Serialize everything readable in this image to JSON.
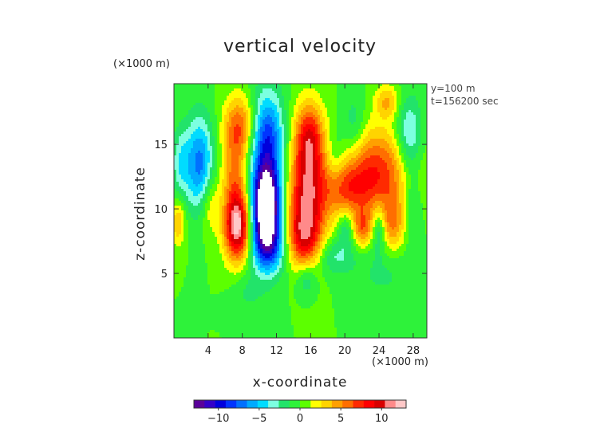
{
  "chart_data": {
    "type": "heatmap",
    "title": "vertical velocity",
    "xlabel": "x-coordinate",
    "ylabel": "z-coordinate",
    "x_unit": "(×1000 m)",
    "y_unit": "(×1000 m)",
    "info": [
      "y=100 m",
      "t=156200 sec"
    ],
    "xlim": [
      0,
      29.6
    ],
    "ylim": [
      0,
      19.7
    ],
    "xticks": [
      4,
      8,
      12,
      16,
      20,
      24,
      28
    ],
    "yticks": [
      5,
      10,
      15
    ],
    "colorbar": {
      "range": [
        -13,
        13
      ],
      "ticks": [
        -10,
        -5,
        0,
        5,
        10
      ],
      "colors": [
        "#5a009a",
        "#3400c8",
        "#0000dc",
        "#0034ff",
        "#0070ff",
        "#00aaff",
        "#00dcff",
        "#7cffe0",
        "#22e36a",
        "#2ef23a",
        "#5cff00",
        "#ffff00",
        "#ffd400",
        "#ffa000",
        "#ff6e00",
        "#ff2a00",
        "#ff0000",
        "#d80000",
        "#ff8a8a",
        "#ffc8c8"
      ]
    },
    "features": [
      {
        "x": 10.8,
        "z": 10.0,
        "w": -13.5,
        "sx": 1.1,
        "sz": 2.2
      },
      {
        "x": 10.8,
        "z": 12.5,
        "w": -6.5,
        "sx": 1.5,
        "sz": 4.2
      },
      {
        "x": 11.0,
        "z": 16.0,
        "w": -4.0,
        "sx": 1.2,
        "sz": 2.0
      },
      {
        "x": 11.2,
        "z": 7.0,
        "w": -5.0,
        "sx": 1.6,
        "sz": 1.4
      },
      {
        "x": 7.5,
        "z": 8.5,
        "w": 11.0,
        "sx": 1.1,
        "sz": 1.8
      },
      {
        "x": 7.2,
        "z": 12.5,
        "w": 5.5,
        "sx": 1.1,
        "sz": 3.0
      },
      {
        "x": 7.8,
        "z": 16.5,
        "w": 5.0,
        "sx": 1.3,
        "sz": 1.6
      },
      {
        "x": 15.5,
        "z": 10.5,
        "w": 10.0,
        "sx": 1.6,
        "sz": 2.8
      },
      {
        "x": 15.8,
        "z": 15.5,
        "w": 8.0,
        "sx": 1.2,
        "sz": 2.0
      },
      {
        "x": 15.0,
        "z": 7.5,
        "w": 5.0,
        "sx": 1.5,
        "sz": 1.5
      },
      {
        "x": 23.5,
        "z": 12.8,
        "w": 7.5,
        "sx": 3.2,
        "sz": 2.4
      },
      {
        "x": 20.0,
        "z": 11.5,
        "w": 4.0,
        "sx": 2.0,
        "sz": 1.5
      },
      {
        "x": 25.5,
        "z": 8.8,
        "w": 4.5,
        "sx": 1.3,
        "sz": 1.5
      },
      {
        "x": 22.0,
        "z": 8.5,
        "w": 5.0,
        "sx": 0.9,
        "sz": 1.0
      },
      {
        "x": 3.0,
        "z": 13.5,
        "w": -7.0,
        "sx": 1.1,
        "sz": 2.6
      },
      {
        "x": 0.8,
        "z": 13.5,
        "w": -3.5,
        "sx": 0.8,
        "sz": 2.0
      },
      {
        "x": 4.2,
        "z": 10.3,
        "w": 3.0,
        "sx": 0.8,
        "sz": 1.6
      },
      {
        "x": 0.5,
        "z": 9.0,
        "w": 4.0,
        "sx": 0.6,
        "sz": 1.3
      },
      {
        "x": 24.0,
        "z": 8.5,
        "w": -5.0,
        "sx": 0.6,
        "sz": 1.3
      },
      {
        "x": 20.2,
        "z": 8.5,
        "w": -3.5,
        "sx": 0.7,
        "sz": 1.0
      },
      {
        "x": 18.8,
        "z": 6.3,
        "w": -3.0,
        "sx": 1.6,
        "sz": 1.0
      },
      {
        "x": 15.5,
        "z": 4.5,
        "w": -3.0,
        "sx": 0.8,
        "sz": 0.9
      },
      {
        "x": 27.5,
        "z": 15.5,
        "w": -5.0,
        "sx": 1.1,
        "sz": 2.2
      },
      {
        "x": 27.8,
        "z": 10.0,
        "w": -3.0,
        "sx": 0.8,
        "sz": 2.0
      },
      {
        "x": 21.0,
        "z": 16.0,
        "w": -3.0,
        "sx": 1.0,
        "sz": 2.0
      },
      {
        "x": 25.0,
        "z": 18.3,
        "w": 4.0,
        "sx": 1.0,
        "sz": 0.9
      },
      {
        "x": 19.0,
        "z": 14.0,
        "w": -2.5,
        "sx": 0.8,
        "sz": 1.5
      },
      {
        "x": 24.5,
        "z": 5.0,
        "w": -1.6,
        "sx": 2.5,
        "sz": 1.5
      },
      {
        "x": 8.5,
        "z": 3.5,
        "w": -1.5,
        "sx": 1.2,
        "sz": 1.0
      }
    ]
  }
}
